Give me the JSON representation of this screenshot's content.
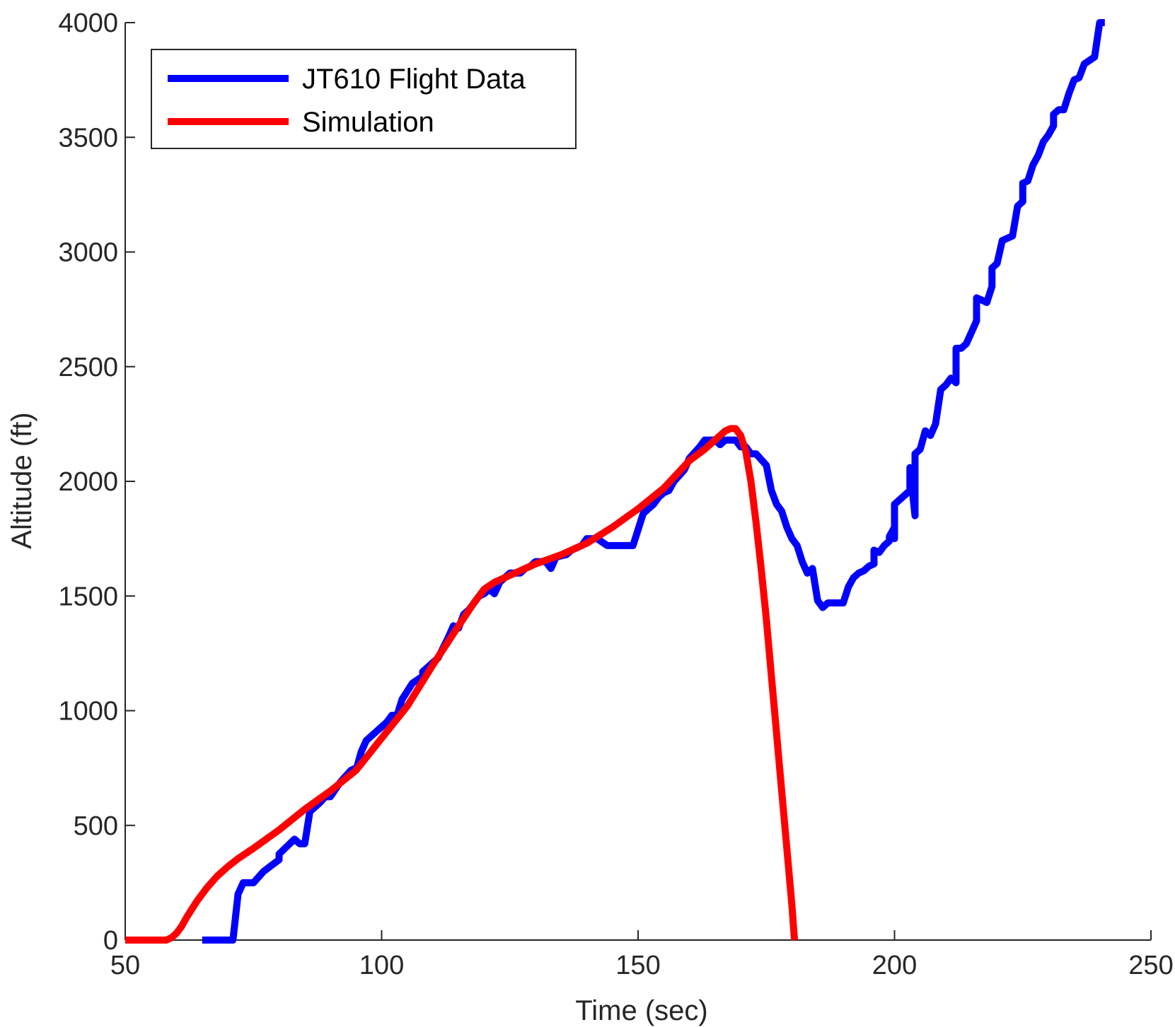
{
  "chart_data": {
    "type": "line",
    "title": "",
    "xlabel": "Time (sec)",
    "ylabel": "Altitude (ft)",
    "xlim": [
      50,
      250
    ],
    "ylim": [
      0,
      4000
    ],
    "x_ticks": [
      50,
      100,
      150,
      200,
      250
    ],
    "y_ticks": [
      0,
      500,
      1000,
      1500,
      2000,
      2500,
      3000,
      3500,
      4000
    ],
    "grid": false,
    "legend_position": "top-left",
    "series": [
      {
        "name": "JT610 Flight Data",
        "color": "#0000ff",
        "points": [
          [
            65,
            0
          ],
          [
            71,
            0
          ],
          [
            72,
            200
          ],
          [
            73,
            250
          ],
          [
            75,
            250
          ],
          [
            77,
            300
          ],
          [
            80,
            350
          ],
          [
            80,
            375
          ],
          [
            83,
            440
          ],
          [
            84,
            420
          ],
          [
            85,
            420
          ],
          [
            86,
            560
          ],
          [
            87,
            580
          ],
          [
            88,
            600
          ],
          [
            89,
            625
          ],
          [
            90,
            625
          ],
          [
            92,
            690
          ],
          [
            94,
            740
          ],
          [
            95,
            750
          ],
          [
            95,
            740
          ],
          [
            96,
            820
          ],
          [
            97,
            870
          ],
          [
            99,
            910
          ],
          [
            101,
            950
          ],
          [
            102,
            980
          ],
          [
            103,
            980
          ],
          [
            104,
            1050
          ],
          [
            106,
            1120
          ],
          [
            108,
            1150
          ],
          [
            108,
            1170
          ],
          [
            110,
            1210
          ],
          [
            111,
            1230
          ],
          [
            113,
            1320
          ],
          [
            114,
            1370
          ],
          [
            115,
            1360
          ],
          [
            116,
            1420
          ],
          [
            117,
            1440
          ],
          [
            119,
            1500
          ],
          [
            120,
            1510
          ],
          [
            121,
            1530
          ],
          [
            122,
            1510
          ],
          [
            123,
            1560
          ],
          [
            124,
            1580
          ],
          [
            125,
            1600
          ],
          [
            127,
            1600
          ],
          [
            128,
            1620
          ],
          [
            129,
            1630
          ],
          [
            130,
            1650
          ],
          [
            132,
            1650
          ],
          [
            133,
            1620
          ],
          [
            134,
            1670
          ],
          [
            136,
            1680
          ],
          [
            137,
            1700
          ],
          [
            139,
            1720
          ],
          [
            140,
            1750
          ],
          [
            142,
            1750
          ],
          [
            144,
            1720
          ],
          [
            149,
            1720
          ],
          [
            151,
            1860
          ],
          [
            152,
            1880
          ],
          [
            153,
            1900
          ],
          [
            154,
            1930
          ],
          [
            155,
            1950
          ],
          [
            156,
            1960
          ],
          [
            157,
            2000
          ],
          [
            159,
            2050
          ],
          [
            160,
            2100
          ],
          [
            162,
            2150
          ],
          [
            163,
            2180
          ],
          [
            165,
            2180
          ],
          [
            166,
            2160
          ],
          [
            167,
            2180
          ],
          [
            169,
            2180
          ],
          [
            170,
            2150
          ],
          [
            171,
            2150
          ],
          [
            172,
            2120
          ],
          [
            173,
            2120
          ],
          [
            175,
            2070
          ],
          [
            176,
            1960
          ],
          [
            177,
            1900
          ],
          [
            178,
            1870
          ],
          [
            179,
            1800
          ],
          [
            180,
            1750
          ],
          [
            181,
            1720
          ],
          [
            182,
            1650
          ],
          [
            183,
            1600
          ],
          [
            184,
            1620
          ],
          [
            185,
            1480
          ],
          [
            186,
            1450
          ],
          [
            187,
            1470
          ],
          [
            190,
            1470
          ],
          [
            191,
            1540
          ],
          [
            192,
            1580
          ],
          [
            193,
            1600
          ],
          [
            194,
            1610
          ],
          [
            195,
            1630
          ],
          [
            196,
            1640
          ],
          [
            196,
            1700
          ],
          [
            197,
            1690
          ],
          [
            198,
            1720
          ],
          [
            199,
            1740
          ],
          [
            199,
            1760
          ],
          [
            200,
            1800
          ],
          [
            200,
            1750
          ],
          [
            200,
            1900
          ],
          [
            201,
            1920
          ],
          [
            203,
            1960
          ],
          [
            203,
            2060
          ],
          [
            204,
            1850
          ],
          [
            204,
            2120
          ],
          [
            205,
            2140
          ],
          [
            206,
            2220
          ],
          [
            207,
            2200
          ],
          [
            208,
            2250
          ],
          [
            209,
            2400
          ],
          [
            210,
            2420
          ],
          [
            211,
            2450
          ],
          [
            212,
            2430
          ],
          [
            212,
            2580
          ],
          [
            213,
            2580
          ],
          [
            214,
            2600
          ],
          [
            215,
            2650
          ],
          [
            216,
            2700
          ],
          [
            216,
            2800
          ],
          [
            217,
            2790
          ],
          [
            218,
            2780
          ],
          [
            219,
            2850
          ],
          [
            219,
            2930
          ],
          [
            220,
            2950
          ],
          [
            221,
            3050
          ],
          [
            223,
            3070
          ],
          [
            224,
            3200
          ],
          [
            225,
            3220
          ],
          [
            225,
            3300
          ],
          [
            226,
            3310
          ],
          [
            227,
            3380
          ],
          [
            228,
            3420
          ],
          [
            229,
            3480
          ],
          [
            230,
            3510
          ],
          [
            231,
            3550
          ],
          [
            231,
            3600
          ],
          [
            232,
            3620
          ],
          [
            233,
            3620
          ],
          [
            234,
            3690
          ],
          [
            235,
            3750
          ],
          [
            236,
            3760
          ],
          [
            237,
            3820
          ],
          [
            239,
            3850
          ],
          [
            240,
            4000
          ],
          [
            241,
            4000
          ]
        ]
      },
      {
        "name": "Simulation",
        "color": "#ff0000",
        "points": [
          [
            50,
            0
          ],
          [
            55,
            0
          ],
          [
            58,
            0
          ],
          [
            59,
            10
          ],
          [
            60,
            30
          ],
          [
            61,
            60
          ],
          [
            62,
            100
          ],
          [
            64,
            170
          ],
          [
            66,
            230
          ],
          [
            68,
            280
          ],
          [
            70,
            320
          ],
          [
            72,
            355
          ],
          [
            75,
            400
          ],
          [
            80,
            480
          ],
          [
            85,
            570
          ],
          [
            90,
            650
          ],
          [
            95,
            740
          ],
          [
            100,
            880
          ],
          [
            105,
            1020
          ],
          [
            110,
            1200
          ],
          [
            115,
            1370
          ],
          [
            118,
            1470
          ],
          [
            120,
            1530
          ],
          [
            122,
            1560
          ],
          [
            125,
            1590
          ],
          [
            130,
            1640
          ],
          [
            135,
            1680
          ],
          [
            140,
            1730
          ],
          [
            145,
            1800
          ],
          [
            150,
            1880
          ],
          [
            155,
            1970
          ],
          [
            160,
            2090
          ],
          [
            163,
            2140
          ],
          [
            165,
            2180
          ],
          [
            167,
            2220
          ],
          [
            168,
            2230
          ],
          [
            169,
            2230
          ],
          [
            170,
            2200
          ],
          [
            171,
            2130
          ],
          [
            172,
            2000
          ],
          [
            173,
            1820
          ],
          [
            174,
            1620
          ],
          [
            175,
            1400
          ],
          [
            176,
            1150
          ],
          [
            177,
            900
          ],
          [
            178,
            650
          ],
          [
            179,
            400
          ],
          [
            180,
            150
          ],
          [
            180.5,
            0
          ]
        ]
      }
    ]
  }
}
